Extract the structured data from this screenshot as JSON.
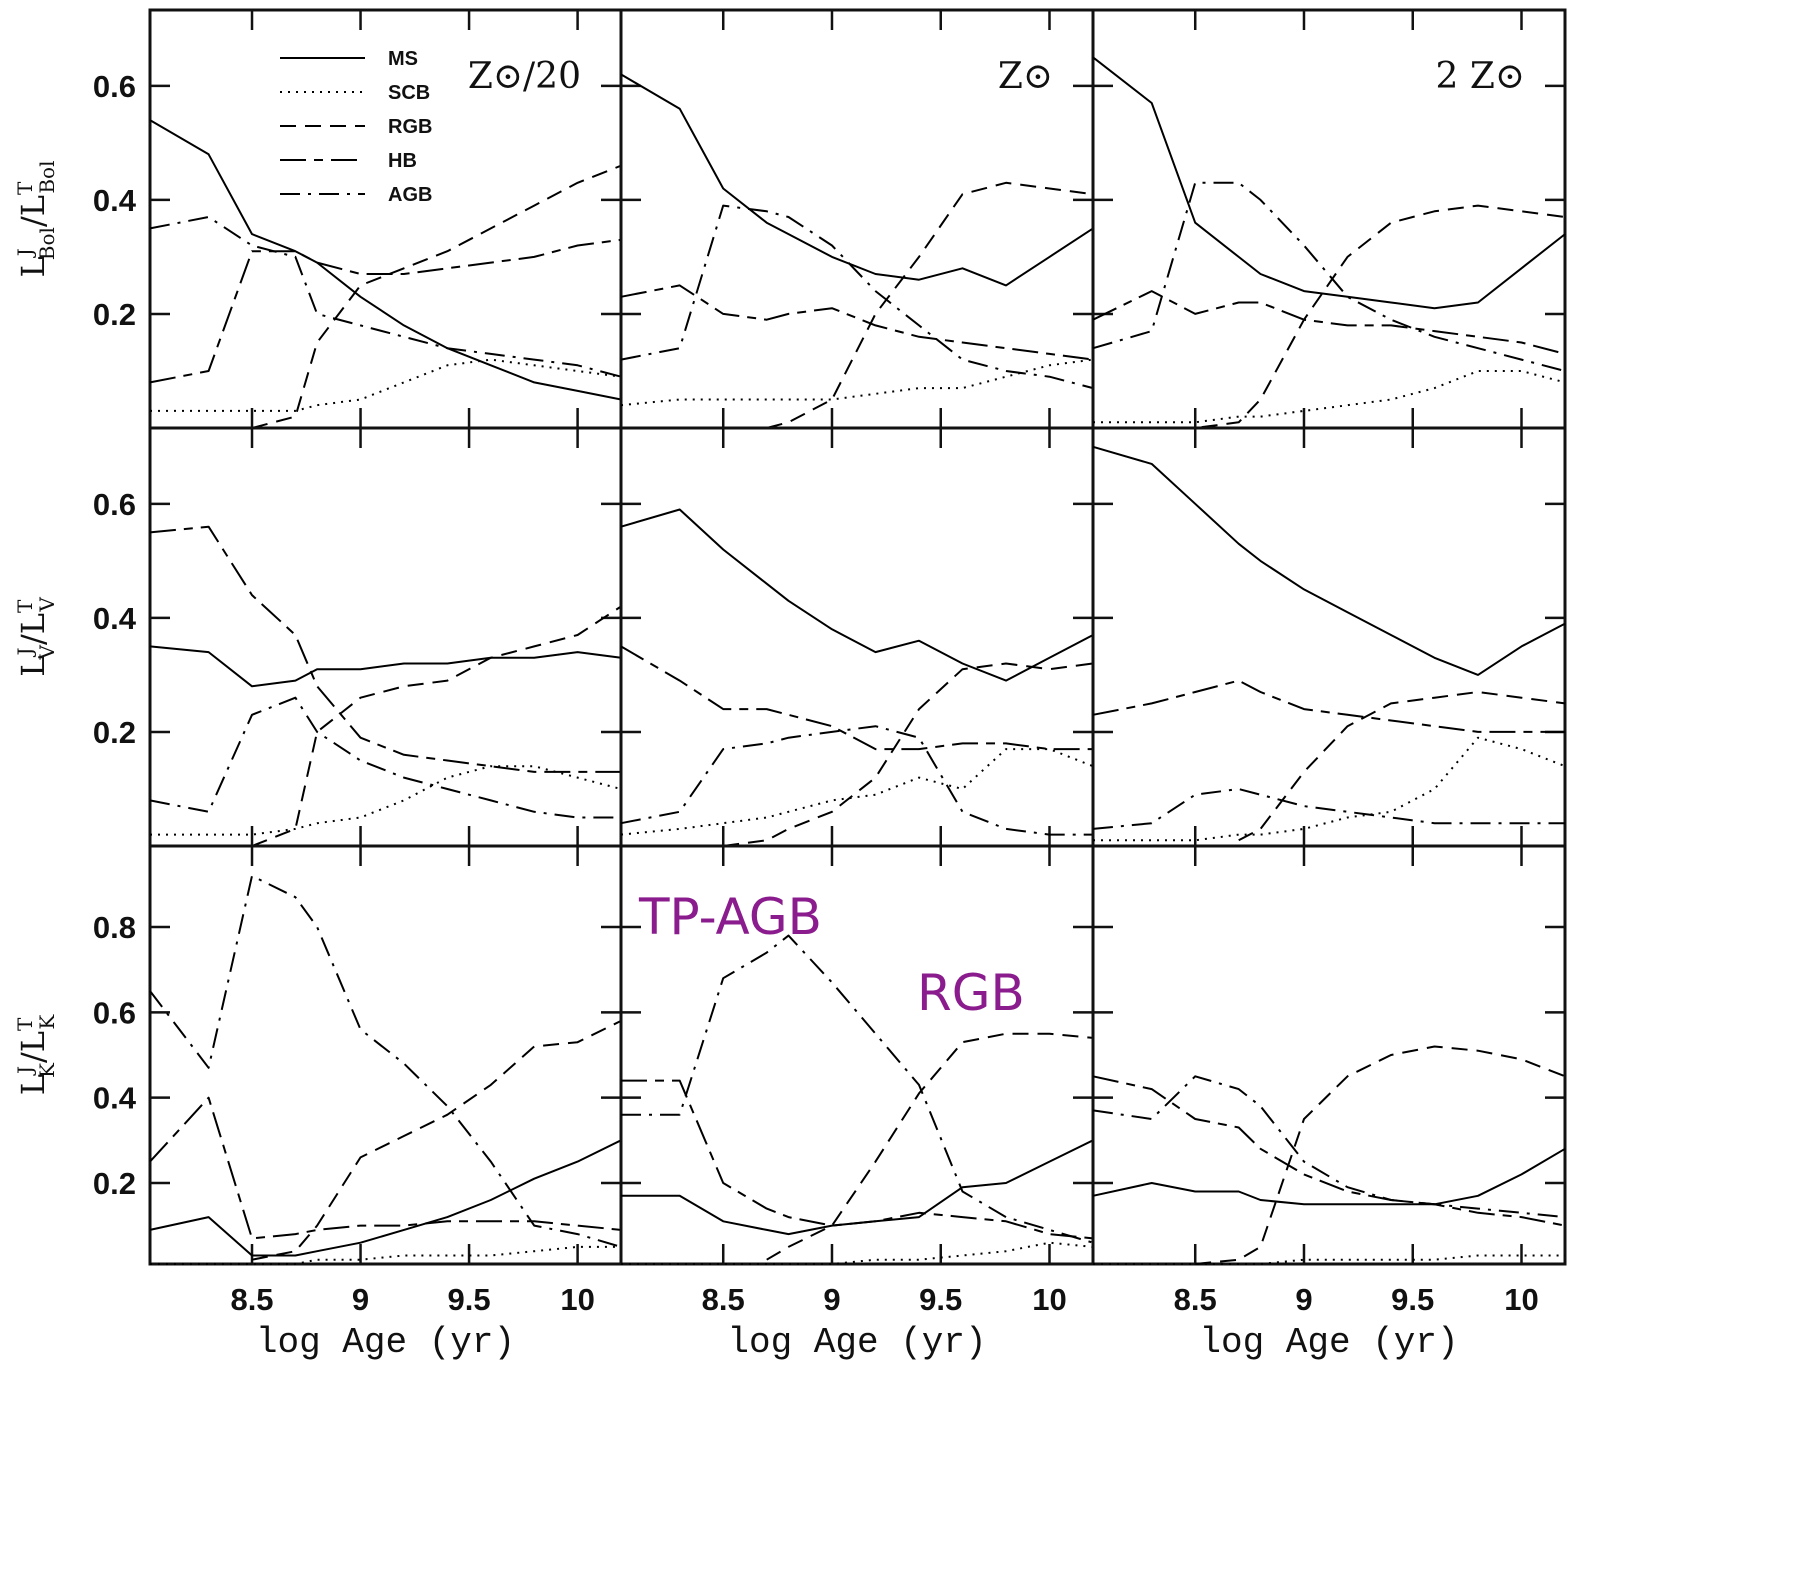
{
  "chart_data": [
    {
      "type": "line",
      "title": "Z⊙/20",
      "ylabel": [
        "L",
        "J",
        "Bol",
        "/L",
        "T",
        "Bol"
      ],
      "legend": "upper left",
      "x": [
        8.03,
        8.3,
        8.5,
        8.7,
        8.8,
        9.0,
        9.2,
        9.4,
        9.6,
        9.8,
        10.0,
        10.2
      ],
      "xlim": [
        8.03,
        10.2
      ],
      "ylim": [
        0,
        0.733
      ],
      "yticks": [
        0.2,
        0.4,
        0.6
      ],
      "series": [
        {
          "name": "MS",
          "style": "solid",
          "color": "#000000",
          "values": [
            0.54,
            0.48,
            0.34,
            0.31,
            0.29,
            0.23,
            0.18,
            0.14,
            0.11,
            0.08,
            0.065,
            0.05
          ]
        },
        {
          "name": "SCB",
          "style": "dotted",
          "color": "#000000",
          "values": [
            0.03,
            0.03,
            0.03,
            0.03,
            0.04,
            0.05,
            0.08,
            0.11,
            0.12,
            0.11,
            0.1,
            0.09
          ]
        },
        {
          "name": "RGB",
          "style": "dashed",
          "color": "#000000",
          "values": [
            null,
            null,
            0.0,
            0.02,
            0.15,
            0.25,
            0.28,
            0.31,
            0.35,
            0.39,
            0.43,
            0.46
          ]
        },
        {
          "name": "HB",
          "style": "long-short-dash",
          "color": "#000000",
          "values": [
            0.08,
            0.1,
            0.31,
            0.31,
            0.29,
            0.27,
            0.27,
            0.28,
            0.29,
            0.3,
            0.32,
            0.33
          ]
        },
        {
          "name": "AGB",
          "style": "dash-dot",
          "color": "#000000",
          "values": [
            0.35,
            0.37,
            0.32,
            0.3,
            0.2,
            0.18,
            0.16,
            0.14,
            0.13,
            0.12,
            0.11,
            0.09
          ]
        }
      ]
    },
    {
      "type": "line",
      "title": "Z⊙",
      "x": [
        8.03,
        8.3,
        8.5,
        8.7,
        8.8,
        9.0,
        9.2,
        9.4,
        9.6,
        9.8,
        10.0,
        10.2
      ],
      "xlim": [
        8.03,
        10.2
      ],
      "ylim": [
        0,
        0.733
      ],
      "series": [
        {
          "style": "solid",
          "color": "#000000",
          "values": [
            0.62,
            0.56,
            0.42,
            0.36,
            0.34,
            0.3,
            0.27,
            0.26,
            0.28,
            0.25,
            0.3,
            0.35
          ]
        },
        {
          "style": "dotted",
          "color": "#000000",
          "values": [
            0.04,
            0.05,
            0.05,
            0.05,
            0.05,
            0.05,
            0.06,
            0.07,
            0.07,
            0.09,
            0.11,
            0.12
          ]
        },
        {
          "style": "dashed",
          "color": "#000000",
          "values": [
            null,
            null,
            null,
            0.0,
            0.01,
            0.05,
            0.2,
            0.3,
            0.41,
            0.43,
            0.42,
            0.41
          ]
        },
        {
          "style": "long-short-dash",
          "color": "#000000",
          "values": [
            0.23,
            0.25,
            0.2,
            0.19,
            0.2,
            0.21,
            0.18,
            0.16,
            0.15,
            0.14,
            0.13,
            0.12
          ]
        },
        {
          "style": "dash-dot",
          "color": "#000000",
          "values": [
            0.12,
            0.14,
            0.39,
            0.38,
            0.37,
            0.32,
            0.24,
            0.18,
            0.12,
            0.1,
            0.09,
            0.07
          ]
        }
      ]
    },
    {
      "type": "line",
      "title": "2 Z⊙",
      "x": [
        8.03,
        8.3,
        8.5,
        8.7,
        8.8,
        9.0,
        9.2,
        9.4,
        9.6,
        9.8,
        10.0,
        10.2
      ],
      "xlim": [
        8.03,
        10.2
      ],
      "ylim": [
        0,
        0.733
      ],
      "series": [
        {
          "style": "solid",
          "color": "#000000",
          "values": [
            0.65,
            0.57,
            0.36,
            0.3,
            0.27,
            0.24,
            0.23,
            0.22,
            0.21,
            0.22,
            0.28,
            0.34
          ]
        },
        {
          "style": "dotted",
          "color": "#000000",
          "values": [
            0.01,
            0.01,
            0.01,
            0.02,
            0.02,
            0.03,
            0.04,
            0.05,
            0.07,
            0.1,
            0.1,
            0.08
          ]
        },
        {
          "style": "dashed",
          "color": "#000000",
          "values": [
            null,
            0.0,
            0.0,
            0.01,
            0.05,
            0.19,
            0.3,
            0.36,
            0.38,
            0.39,
            0.38,
            0.37
          ]
        },
        {
          "style": "long-short-dash",
          "color": "#000000",
          "values": [
            0.19,
            0.24,
            0.2,
            0.22,
            0.22,
            0.19,
            0.18,
            0.18,
            0.17,
            0.16,
            0.15,
            0.13
          ]
        },
        {
          "style": "dash-dot",
          "color": "#000000",
          "values": [
            0.14,
            0.17,
            0.43,
            0.43,
            0.4,
            0.32,
            0.23,
            0.19,
            0.16,
            0.14,
            0.12,
            0.1
          ]
        }
      ]
    },
    {
      "type": "line",
      "ylabel": [
        "L",
        "J",
        "V",
        "/L",
        "T",
        "V"
      ],
      "x": [
        8.03,
        8.3,
        8.5,
        8.7,
        8.8,
        9.0,
        9.2,
        9.4,
        9.6,
        9.8,
        10.0,
        10.2
      ],
      "xlim": [
        8.03,
        10.2
      ],
      "ylim": [
        0,
        0.733
      ],
      "yticks": [
        0.2,
        0.4,
        0.6
      ],
      "series": [
        {
          "style": "solid",
          "color": "#000000",
          "values": [
            0.35,
            0.34,
            0.28,
            0.29,
            0.31,
            0.31,
            0.32,
            0.32,
            0.33,
            0.33,
            0.34,
            0.33
          ]
        },
        {
          "style": "dotted",
          "color": "#000000",
          "values": [
            0.02,
            0.02,
            0.02,
            0.03,
            0.04,
            0.05,
            0.08,
            0.12,
            0.14,
            0.14,
            0.12,
            0.1
          ]
        },
        {
          "style": "dashed",
          "color": "#000000",
          "values": [
            null,
            null,
            0.0,
            0.03,
            0.2,
            0.26,
            0.28,
            0.29,
            0.33,
            0.35,
            0.37,
            0.42
          ]
        },
        {
          "style": "long-short-dash",
          "color": "#000000",
          "values": [
            0.55,
            0.56,
            0.44,
            0.37,
            0.28,
            0.19,
            0.16,
            0.15,
            0.14,
            0.13,
            0.13,
            0.13
          ]
        },
        {
          "style": "dash-dot",
          "color": "#000000",
          "values": [
            0.08,
            0.06,
            0.23,
            0.26,
            0.2,
            0.15,
            0.12,
            0.1,
            0.08,
            0.06,
            0.05,
            0.05
          ]
        }
      ]
    },
    {
      "type": "line",
      "x": [
        8.03,
        8.3,
        8.5,
        8.7,
        8.8,
        9.0,
        9.2,
        9.4,
        9.6,
        9.8,
        10.0,
        10.2
      ],
      "xlim": [
        8.03,
        10.2
      ],
      "ylim": [
        0,
        0.733
      ],
      "series": [
        {
          "style": "solid",
          "color": "#000000",
          "values": [
            0.56,
            0.59,
            0.52,
            0.46,
            0.43,
            0.38,
            0.34,
            0.36,
            0.32,
            0.29,
            0.33,
            0.37
          ]
        },
        {
          "style": "dotted",
          "color": "#000000",
          "values": [
            0.02,
            0.03,
            0.04,
            0.05,
            0.06,
            0.08,
            0.09,
            0.12,
            0.1,
            0.17,
            0.17,
            0.14
          ]
        },
        {
          "style": "dashed",
          "color": "#000000",
          "values": [
            null,
            null,
            0.0,
            0.01,
            0.03,
            0.06,
            0.12,
            0.24,
            0.31,
            0.32,
            0.31,
            0.32
          ]
        },
        {
          "style": "long-short-dash",
          "color": "#000000",
          "values": [
            0.35,
            0.29,
            0.24,
            0.24,
            0.23,
            0.21,
            0.17,
            0.17,
            0.18,
            0.18,
            0.17,
            0.17
          ]
        },
        {
          "style": "dash-dot",
          "color": "#000000",
          "values": [
            0.04,
            0.06,
            0.17,
            0.18,
            0.19,
            0.2,
            0.21,
            0.19,
            0.06,
            0.03,
            0.02,
            0.02
          ]
        }
      ]
    },
    {
      "type": "line",
      "x": [
        8.03,
        8.3,
        8.5,
        8.7,
        8.8,
        9.0,
        9.2,
        9.4,
        9.6,
        9.8,
        10.0,
        10.2
      ],
      "xlim": [
        8.03,
        10.2
      ],
      "ylim": [
        0,
        0.733
      ],
      "series": [
        {
          "style": "solid",
          "color": "#000000",
          "values": [
            0.7,
            0.67,
            0.6,
            0.53,
            0.5,
            0.45,
            0.41,
            0.37,
            0.33,
            0.3,
            0.35,
            0.39
          ]
        },
        {
          "style": "dotted",
          "color": "#000000",
          "values": [
            0.01,
            0.01,
            0.01,
            0.02,
            0.02,
            0.03,
            0.05,
            0.06,
            0.1,
            0.19,
            0.17,
            0.14
          ]
        },
        {
          "style": "dashed",
          "color": "#000000",
          "values": [
            null,
            null,
            null,
            0.01,
            0.03,
            0.13,
            0.21,
            0.25,
            0.26,
            0.27,
            0.26,
            0.25
          ]
        },
        {
          "style": "long-short-dash",
          "color": "#000000",
          "values": [
            0.23,
            0.25,
            0.27,
            0.29,
            0.27,
            0.24,
            0.23,
            0.22,
            0.21,
            0.2,
            0.2,
            0.2
          ]
        },
        {
          "style": "dash-dot",
          "color": "#000000",
          "values": [
            0.03,
            0.04,
            0.09,
            0.1,
            0.09,
            0.07,
            0.06,
            0.05,
            0.04,
            0.04,
            0.04,
            0.04
          ]
        }
      ]
    },
    {
      "type": "line",
      "ylabel": [
        "L",
        "J",
        "K",
        "/L",
        "T",
        "K"
      ],
      "xlabel": "log Age (yr)",
      "x": [
        8.03,
        8.3,
        8.5,
        8.7,
        8.8,
        9.0,
        9.2,
        9.4,
        9.6,
        9.8,
        10.0,
        10.2
      ],
      "xlim": [
        8.03,
        10.2
      ],
      "ylim": [
        0.01,
        0.99
      ],
      "yticks": [
        0.2,
        0.4,
        0.6,
        0.8
      ],
      "xticks": [
        8.5,
        9,
        9.5,
        10
      ],
      "series": [
        {
          "style": "solid",
          "color": "#000000",
          "values": [
            0.09,
            0.12,
            0.03,
            0.03,
            0.04,
            0.06,
            0.09,
            0.12,
            0.16,
            0.21,
            0.25,
            0.3
          ]
        },
        {
          "style": "dotted",
          "color": "#000000",
          "values": [
            0.01,
            0.01,
            0.01,
            0.01,
            0.02,
            0.02,
            0.03,
            0.03,
            0.03,
            0.04,
            0.05,
            0.05
          ]
        },
        {
          "style": "dashed",
          "color": "#000000",
          "values": [
            null,
            null,
            0.02,
            0.04,
            0.1,
            0.26,
            0.31,
            0.36,
            0.43,
            0.52,
            0.53,
            0.58
          ]
        },
        {
          "style": "long-short-dash",
          "color": "#000000",
          "values": [
            0.25,
            0.4,
            0.07,
            0.08,
            0.09,
            0.1,
            0.1,
            0.11,
            0.11,
            0.11,
            0.1,
            0.09
          ]
        },
        {
          "style": "dash-dot",
          "color": "#000000",
          "values": [
            0.65,
            0.47,
            0.92,
            0.87,
            0.8,
            0.56,
            0.48,
            0.38,
            0.25,
            0.1,
            0.08,
            0.05
          ]
        }
      ]
    },
    {
      "type": "line",
      "xlabel": "log Age (yr)",
      "annotations": [
        "TP-AGB",
        "RGB"
      ],
      "annotation_color": "#8b1c8e",
      "x": [
        8.03,
        8.3,
        8.5,
        8.7,
        8.8,
        9.0,
        9.2,
        9.4,
        9.6,
        9.8,
        10.0,
        10.2
      ],
      "xlim": [
        8.03,
        10.2
      ],
      "ylim": [
        0.01,
        0.99
      ],
      "xticks": [
        8.5,
        9,
        9.5,
        10
      ],
      "series": [
        {
          "style": "solid",
          "color": "#000000",
          "values": [
            0.17,
            0.17,
            0.11,
            0.09,
            0.08,
            0.1,
            0.11,
            0.12,
            0.19,
            0.2,
            0.25,
            0.3
          ]
        },
        {
          "style": "dotted",
          "color": "#000000",
          "values": [
            0.01,
            0.01,
            0.01,
            0.01,
            0.01,
            0.01,
            0.02,
            0.02,
            0.03,
            0.04,
            0.06,
            0.05
          ]
        },
        {
          "style": "dashed",
          "color": "#000000",
          "values": [
            null,
            null,
            null,
            0.02,
            0.05,
            0.1,
            0.25,
            0.41,
            0.53,
            0.55,
            0.55,
            0.54
          ]
        },
        {
          "style": "long-short-dash",
          "color": "#000000",
          "values": [
            0.44,
            0.44,
            0.2,
            0.14,
            0.12,
            0.1,
            0.11,
            0.13,
            0.12,
            0.11,
            0.08,
            0.07
          ]
        },
        {
          "style": "dash-dot",
          "color": "#000000",
          "values": [
            0.36,
            0.36,
            0.68,
            0.74,
            0.78,
            0.67,
            0.55,
            0.43,
            0.18,
            0.12,
            0.09,
            0.06
          ]
        }
      ]
    },
    {
      "type": "line",
      "xlabel": "log Age (yr)",
      "x": [
        8.03,
        8.3,
        8.5,
        8.7,
        8.8,
        9.0,
        9.2,
        9.4,
        9.6,
        9.8,
        10.0,
        10.2
      ],
      "xlim": [
        8.03,
        10.2
      ],
      "ylim": [
        0.01,
        0.99
      ],
      "xticks": [
        8.5,
        9,
        9.5,
        10
      ],
      "series": [
        {
          "style": "solid",
          "color": "#000000",
          "values": [
            0.17,
            0.2,
            0.18,
            0.18,
            0.16,
            0.15,
            0.15,
            0.15,
            0.15,
            0.17,
            0.22,
            0.28
          ]
        },
        {
          "style": "dotted",
          "color": "#000000",
          "values": [
            0.01,
            0.01,
            0.01,
            0.01,
            0.01,
            0.02,
            0.02,
            0.02,
            0.02,
            0.03,
            0.03,
            0.03
          ]
        },
        {
          "style": "dashed",
          "color": "#000000",
          "values": [
            null,
            null,
            0.01,
            0.02,
            0.05,
            0.35,
            0.45,
            0.5,
            0.52,
            0.51,
            0.49,
            0.45
          ]
        },
        {
          "style": "long-short-dash",
          "color": "#000000",
          "values": [
            0.45,
            0.42,
            0.35,
            0.33,
            0.28,
            0.22,
            0.18,
            0.16,
            0.15,
            0.13,
            0.12,
            0.1
          ]
        },
        {
          "style": "dash-dot",
          "color": "#000000",
          "values": [
            0.37,
            0.35,
            0.45,
            0.42,
            0.38,
            0.25,
            0.19,
            0.16,
            0.15,
            0.14,
            0.13,
            0.12
          ]
        }
      ]
    }
  ]
}
